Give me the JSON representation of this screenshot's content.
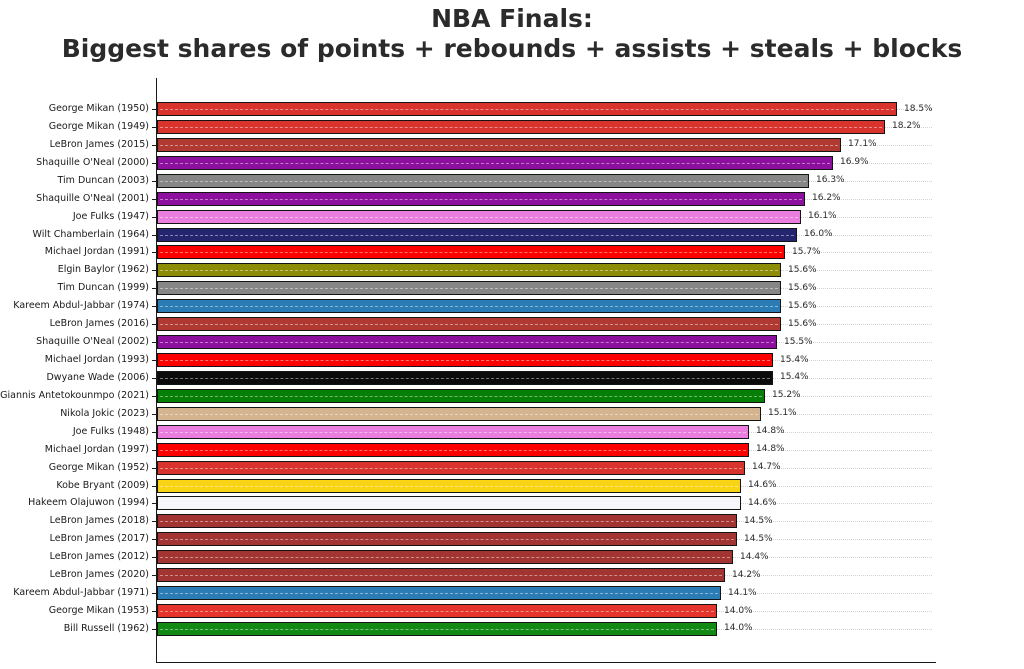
{
  "title": {
    "line1": "NBA Finals:",
    "line2": "Biggest shares of points + rebounds + assists + steals + blocks"
  },
  "chart_data": {
    "type": "bar",
    "orientation": "horizontal",
    "title": "NBA Finals: Biggest shares of points + rebounds + assists + steals + blocks",
    "xlabel": "",
    "ylabel": "",
    "xlim": [
      0,
      19.45
    ],
    "grid": "dotted horizontal line per category, drawn over bars",
    "value_unit": "%",
    "bars": [
      {
        "label": "George Mikan (1950)",
        "value": 18.5,
        "display": "18.5%",
        "color": "#d8332c"
      },
      {
        "label": "George Mikan (1949)",
        "value": 18.2,
        "display": "18.2%",
        "color": "#d8332c"
      },
      {
        "label": "LeBron James (2015)",
        "value": 17.1,
        "display": "17.1%",
        "color": "#b03a32"
      },
      {
        "label": "Shaquille O'Neal (2000)",
        "value": 16.9,
        "display": "16.9%",
        "color": "#8d0f9d"
      },
      {
        "label": "Tim Duncan (2003)",
        "value": 16.3,
        "display": "16.3%",
        "color": "#868686"
      },
      {
        "label": "Shaquille O'Neal (2001)",
        "value": 16.2,
        "display": "16.2%",
        "color": "#8d0f9d"
      },
      {
        "label": "Joe Fulks (1947)",
        "value": 16.1,
        "display": "16.1%",
        "color": "#e97ede"
      },
      {
        "label": "Wilt Chamberlain (1964)",
        "value": 16.0,
        "display": "16.0%",
        "color": "#24246f"
      },
      {
        "label": "Michael Jordan (1991)",
        "value": 15.7,
        "display": "15.7%",
        "color": "#fe0000"
      },
      {
        "label": "Elgin Baylor (1962)",
        "value": 15.6,
        "display": "15.6%",
        "color": "#8c8c06"
      },
      {
        "label": "Tim Duncan (1999)",
        "value": 15.6,
        "display": "15.6%",
        "color": "#868686"
      },
      {
        "label": "Kareem Abdul-Jabbar (1974)",
        "value": 15.6,
        "display": "15.6%",
        "color": "#2b7bb5"
      },
      {
        "label": "LeBron James (2016)",
        "value": 15.6,
        "display": "15.6%",
        "color": "#b03a32"
      },
      {
        "label": "Shaquille O'Neal (2002)",
        "value": 15.5,
        "display": "15.5%",
        "color": "#8d0f9d"
      },
      {
        "label": "Michael Jordan (1993)",
        "value": 15.4,
        "display": "15.4%",
        "color": "#fe0000"
      },
      {
        "label": "Dwyane Wade (2006)",
        "value": 15.4,
        "display": "15.4%",
        "color": "#0b0b0b"
      },
      {
        "label": "Giannis Antetokounmpo (2021)",
        "value": 15.2,
        "display": "15.2%",
        "color": "#057f05"
      },
      {
        "label": "Nikola Jokic (2023)",
        "value": 15.1,
        "display": "15.1%",
        "color": "#d3b48e"
      },
      {
        "label": "Joe Fulks (1948)",
        "value": 14.8,
        "display": "14.8%",
        "color": "#e97ede"
      },
      {
        "label": "Michael Jordan (1997)",
        "value": 14.8,
        "display": "14.8%",
        "color": "#fe0000"
      },
      {
        "label": "George Mikan (1952)",
        "value": 14.7,
        "display": "14.7%",
        "color": "#d8332c"
      },
      {
        "label": "Kobe Bryant (2009)",
        "value": 14.6,
        "display": "14.6%",
        "color": "#f8d414"
      },
      {
        "label": "Hakeem Olajuwon (1994)",
        "value": 14.6,
        "display": "14.6%",
        "color": "#f7f7fb"
      },
      {
        "label": "LeBron James (2018)",
        "value": 14.5,
        "display": "14.5%",
        "color": "#a23531"
      },
      {
        "label": "LeBron James (2017)",
        "value": 14.5,
        "display": "14.5%",
        "color": "#a23531"
      },
      {
        "label": "LeBron James (2012)",
        "value": 14.4,
        "display": "14.4%",
        "color": "#a23531"
      },
      {
        "label": "LeBron James (2020)",
        "value": 14.2,
        "display": "14.2%",
        "color": "#a23531"
      },
      {
        "label": "Kareem Abdul-Jabbar (1971)",
        "value": 14.1,
        "display": "14.1%",
        "color": "#2b7bb5"
      },
      {
        "label": "George Mikan (1953)",
        "value": 14.0,
        "display": "14.0%",
        "color": "#e4342c"
      },
      {
        "label": "Bill Russell (1962)",
        "value": 14.0,
        "display": "14.0%",
        "color": "#128912"
      }
    ]
  }
}
